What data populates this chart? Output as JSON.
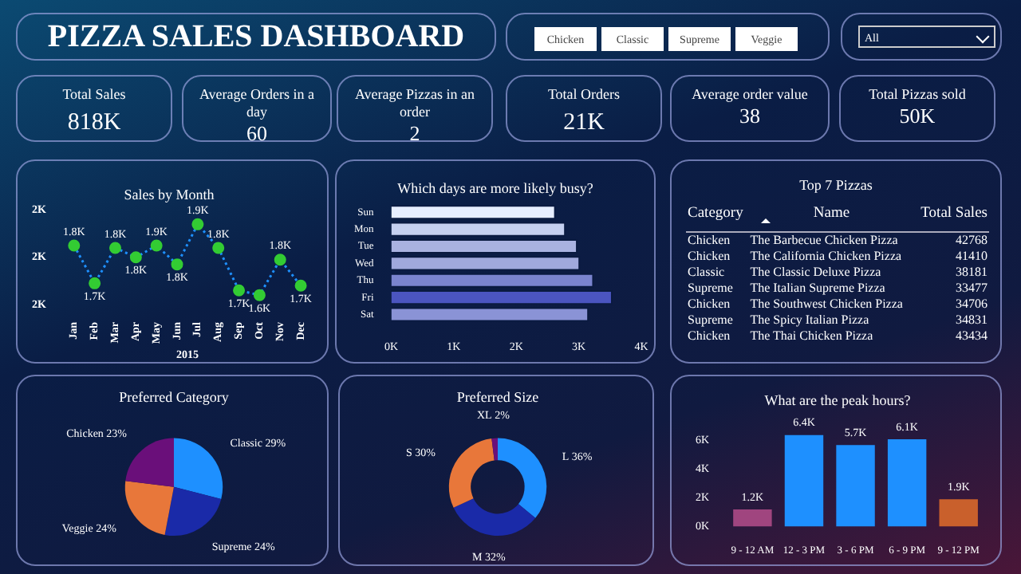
{
  "chart_data": [
    {
      "type": "other",
      "title": "PIZZA SALES DASHBOARD",
      "annotations": [
        "Chicken",
        "Classic",
        "Supreme",
        "Veggie",
        "All",
        "Total Sales",
        "818K",
        "Average Orders in a day",
        "60",
        "Average Pizzas in an order",
        "2",
        "Total Orders",
        "21K",
        "Average order value",
        "38",
        "Total Pizzas sold",
        "50K"
      ]
    },
    {
      "type": "line",
      "title": "Sales by Month",
      "xlabel": "2015",
      "categories": [
        "Jan",
        "Feb",
        "Mar",
        "Apr",
        "May",
        "Jun",
        "Jul",
        "Aug",
        "Sep",
        "Oct",
        "Nov",
        "Dec"
      ],
      "series": [
        {
          "color": "#1e90ff",
          "colors": [
            "#33cc33",
            "#33cc33",
            "#33cc33",
            "#33cc33",
            "#33cc33",
            "#33cc33",
            "#33cc33",
            "#33cc33",
            "#33cc33",
            "#33cc33",
            "#33cc33",
            "#33cc33"
          ],
          "values": [
            1.85,
            1.69,
            1.84,
            1.8,
            1.85,
            1.77,
            1.94,
            1.84,
            1.66,
            1.64,
            1.79,
            1.68
          ],
          "value_labels": [
            "1.8K",
            "1.7K",
            "1.8K",
            "1.8K",
            "1.9K",
            "1.8K",
            "1.9K",
            "1.8K",
            "1.7K",
            "1.6K",
            "1.8K",
            "1.7K"
          ]
        }
      ],
      "ylim": [
        1.6,
        2.0
      ],
      "yticks": [
        {
          "value": 1.6,
          "label": "2K"
        },
        {
          "value": 1.8,
          "label": "2K"
        },
        {
          "value": 2.0,
          "label": "2K"
        }
      ],
      "marker": "circle",
      "line_style": "dotted"
    },
    {
      "type": "bar",
      "orientation": "horizontal",
      "title": "Which days are more likely busy?",
      "categories": [
        "Sun",
        "Mon",
        "Tue",
        "Wed",
        "Thu",
        "Fri",
        "Sat"
      ],
      "values": [
        2.63,
        2.79,
        2.98,
        3.02,
        3.24,
        3.54,
        3.16
      ],
      "colors": [
        "#e6eeff",
        "#c5d0f0",
        "#a9b2e0",
        "#a0a9dc",
        "#7a84cf",
        "#4b55c0",
        "#8a93d6"
      ],
      "xlim": [
        0,
        4
      ],
      "xticks": [
        {
          "value": 0,
          "label": "0K"
        },
        {
          "value": 1,
          "label": "1K"
        },
        {
          "value": 2,
          "label": "2K"
        },
        {
          "value": 3,
          "label": "3K"
        },
        {
          "value": 4,
          "label": "4K"
        }
      ]
    },
    {
      "type": "other",
      "title": "Top 7 Pizzas",
      "annotations": [
        "Category",
        "Name",
        "Total Sales",
        "Chicken",
        "The Barbecue Chicken Pizza",
        "42768",
        "Chicken",
        "The California Chicken Pizza",
        "41410",
        "Classic",
        "The Classic Deluxe Pizza",
        "38181",
        "Supreme",
        "The Italian Supreme Pizza",
        "33477",
        "Chicken",
        "The Southwest Chicken Pizza",
        "34706",
        "Supreme",
        "The Spicy Italian Pizza",
        "34831",
        "Chicken",
        "The Thai Chicken Pizza",
        "43434"
      ]
    },
    {
      "type": "pie",
      "title": "Preferred Category",
      "categories": [
        "Classic",
        "Supreme",
        "Veggie",
        "Chicken"
      ],
      "values": [
        29,
        24,
        24,
        23
      ],
      "colors": [
        "#1e90ff",
        "#1a2aa8",
        "#e8773a",
        "#6a0f7a"
      ],
      "value_labels": [
        "29%",
        "24%",
        "24%",
        "23%"
      ]
    },
    {
      "type": "donut",
      "title": "Preferred Size",
      "categories": [
        "L",
        "M",
        "S",
        "XL"
      ],
      "values": [
        36,
        32,
        30,
        2
      ],
      "colors": [
        "#1e90ff",
        "#1a2aa8",
        "#e8773a",
        "#6a0f7a"
      ],
      "value_labels": [
        "36%",
        "32%",
        "30%",
        "2%"
      ]
    },
    {
      "type": "bar",
      "title": "What are the peak hours?",
      "categories": [
        "9 - 12 AM",
        "12 - 3 PM",
        "3 - 6 PM",
        "6 - 9 PM",
        "9 - 12 PM"
      ],
      "values": [
        1.2,
        6.4,
        5.7,
        6.1,
        1.9
      ],
      "colors": [
        "#a0457f",
        "#1e90ff",
        "#1e90ff",
        "#1e90ff",
        "#c9602c"
      ],
      "value_labels": [
        "1.2K",
        "6.4K",
        "5.7K",
        "6.1K",
        "1.9K"
      ],
      "ylim": [
        0,
        6.4
      ],
      "yticks": [
        {
          "value": 0,
          "label": "0K"
        },
        {
          "value": 2,
          "label": "2K"
        },
        {
          "value": 4,
          "label": "4K"
        },
        {
          "value": 6,
          "label": "6K"
        }
      ]
    }
  ]
}
